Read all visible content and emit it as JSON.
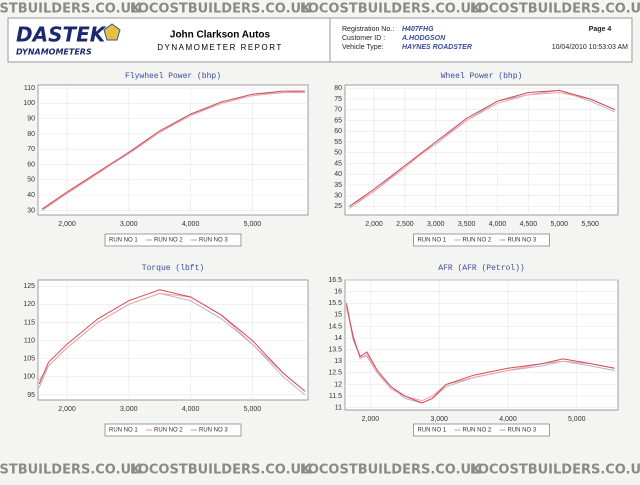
{
  "watermark": "LOCOSTBUILDERS.CO.UK",
  "header": {
    "logo": "DASTEK",
    "logo_sub": "DYNAMOMETERS",
    "company": "John Clarkson Autos",
    "report": "DYNAMOMETER REPORT",
    "registration_label": "Registration No.:",
    "registration": "H407FHG",
    "page": "Page 4",
    "customer_label": "Customer ID :",
    "customer": "A.HODGSON",
    "vehicle_label": "Vehicle Type:",
    "vehicle": "HAYNES ROADSTER",
    "timestamp": "10/04/2010 10:53:03 AM"
  },
  "chart_data": [
    {
      "type": "line",
      "title": "Flywheel Power (bhp)",
      "grid": true,
      "x": [
        1600,
        2000,
        2500,
        3000,
        3500,
        4000,
        4500,
        5000,
        5500,
        5850
      ],
      "series": [
        {
          "name": "RUN NO 1",
          "color": "#d64b52",
          "values": [
            31,
            42,
            55,
            68,
            82,
            93,
            101,
            106,
            108,
            108
          ]
        },
        {
          "name": "RUN NO 2",
          "color": "#eea3ad",
          "values": [
            31,
            41,
            54,
            68,
            81,
            92,
            100,
            105,
            107,
            107
          ]
        },
        {
          "name": "RUN NO 3",
          "color": "#b4b4c4",
          "values": [
            30,
            41,
            55,
            67,
            81,
            93,
            100,
            106,
            107,
            108
          ]
        }
      ],
      "xlim": [
        1530,
        5900
      ],
      "ylim": [
        27,
        112
      ],
      "xticks": [
        {
          "value": 2000,
          "label": "2,000"
        },
        {
          "value": 3000,
          "label": "3,000"
        },
        {
          "value": 4000,
          "label": "4,000"
        },
        {
          "value": 5000,
          "label": "5,000"
        }
      ],
      "yticks": [
        30,
        40,
        50,
        60,
        70,
        80,
        90,
        100,
        110
      ]
    },
    {
      "type": "line",
      "title": "Wheel Power (bhp)",
      "grid": true,
      "x": [
        1600,
        2000,
        2500,
        3000,
        3500,
        4000,
        4500,
        5000,
        5500,
        5900
      ],
      "series": [
        {
          "name": "RUN NO 1",
          "color": "#d64b52",
          "values": [
            25,
            33,
            44,
            55,
            66,
            74,
            78,
            79,
            75,
            70
          ]
        },
        {
          "name": "RUN NO 2",
          "color": "#eea3ad",
          "values": [
            25,
            32,
            43,
            55,
            65,
            73,
            77,
            78,
            75,
            70
          ]
        },
        {
          "name": "RUN NO 3",
          "color": "#b4b4c4",
          "values": [
            24,
            32,
            44,
            54,
            65,
            74,
            77,
            79,
            74,
            69
          ]
        }
      ],
      "xlim": [
        1530,
        5950
      ],
      "ylim": [
        21,
        81.5
      ],
      "xticks": [
        {
          "value": 2000,
          "label": "2,000"
        },
        {
          "value": 2500,
          "label": "2,500"
        },
        {
          "value": 3000,
          "label": "3,000"
        },
        {
          "value": 3500,
          "label": "3,500"
        },
        {
          "value": 4000,
          "label": "4,000"
        },
        {
          "value": 4500,
          "label": "4,500"
        },
        {
          "value": 5000,
          "label": "5,000"
        },
        {
          "value": 5500,
          "label": "5,500"
        }
      ],
      "yticks": [
        25,
        30,
        35,
        40,
        45,
        50,
        55,
        60,
        65,
        70,
        75,
        80
      ]
    },
    {
      "type": "line",
      "title": "Torque (lbft)",
      "grid": true,
      "x": [
        1550,
        1700,
        2000,
        2500,
        3000,
        3500,
        4000,
        4500,
        5000,
        5500,
        5850
      ],
      "series": [
        {
          "name": "RUN NO 1",
          "color": "#d64b52",
          "values": [
            98,
            104,
            109,
            116,
            121,
            124,
            122,
            117,
            110,
            101,
            96
          ]
        },
        {
          "name": "RUN NO 2",
          "color": "#eea3ad",
          "values": [
            99,
            103,
            108,
            115,
            120,
            123,
            122,
            117,
            109,
            101,
            96
          ]
        },
        {
          "name": "RUN NO 3",
          "color": "#b4b4c4",
          "values": [
            97,
            103,
            108,
            115,
            120,
            123,
            121,
            116,
            109,
            100,
            95
          ]
        }
      ],
      "xlim": [
        1530,
        5900
      ],
      "ylim": [
        93.6,
        126.7
      ],
      "xticks": [
        {
          "value": 2000,
          "label": "2,000"
        },
        {
          "value": 3000,
          "label": "3,000"
        },
        {
          "value": 4000,
          "label": "4,000"
        },
        {
          "value": 5000,
          "label": "5,000"
        }
      ],
      "yticks": [
        95,
        100,
        105,
        110,
        115,
        120,
        125
      ]
    },
    {
      "type": "line",
      "title": "AFR (AFR (Petrol))",
      "grid": true,
      "x": [
        1650,
        1750,
        1850,
        1950,
        2100,
        2300,
        2500,
        2750,
        2900,
        3100,
        3500,
        4000,
        4500,
        4800,
        5200,
        5550
      ],
      "series": [
        {
          "name": "RUN NO 1",
          "color": "#d64b52",
          "values": [
            15.5,
            14,
            13.2,
            13.4,
            12.6,
            11.9,
            11.5,
            11.2,
            11.4,
            12,
            12.4,
            12.7,
            12.9,
            13.1,
            12.9,
            12.7
          ]
        },
        {
          "name": "RUN NO 2",
          "color": "#eea3ad",
          "values": [
            15.3,
            14.1,
            13.1,
            13.3,
            12.5,
            11.8,
            11.5,
            11.3,
            11.5,
            12,
            12.3,
            12.6,
            12.9,
            13,
            12.9,
            12.7
          ]
        },
        {
          "name": "RUN NO 3",
          "color": "#b4b4c4",
          "values": [
            15.4,
            13.9,
            13.2,
            13.2,
            12.5,
            11.9,
            11.4,
            11.2,
            11.4,
            11.9,
            12.3,
            12.6,
            12.8,
            13,
            12.8,
            12.6
          ]
        }
      ],
      "xlim": [
        1630,
        5600
      ],
      "ylim": [
        10.9,
        16.5
      ],
      "xticks": [
        {
          "value": 2000,
          "label": "2,000"
        },
        {
          "value": 3000,
          "label": "3,000"
        },
        {
          "value": 4000,
          "label": "4,000"
        },
        {
          "value": 5000,
          "label": "5,000"
        }
      ],
      "yticks": [
        11,
        11.5,
        12,
        12.5,
        13,
        13.5,
        14,
        14.5,
        15,
        15.5,
        16,
        16.5
      ]
    }
  ]
}
